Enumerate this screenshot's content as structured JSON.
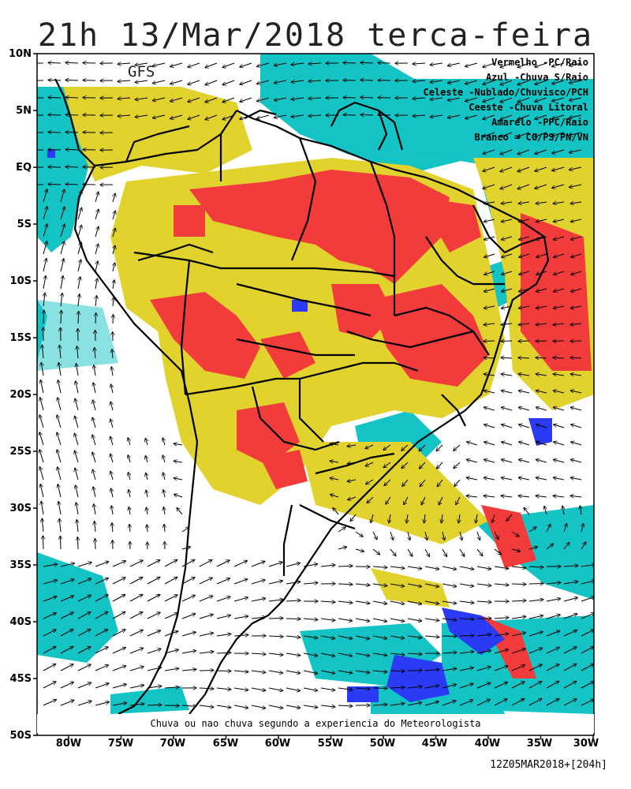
{
  "title": "21h 13/Mar/2018 terca-feira",
  "model": "GFS",
  "legend": [
    "Vermelho -PC/Raio",
    "Azul -Chuva S/Raio",
    "Celeste -Nublado/Chuvisco/PCH",
    "Ceeste -Chuva Litoral",
    "Amarelo -PPC/Raio",
    "Branco = CG/PS/PN/VN"
  ],
  "colors": {
    "red": "#f23c3c",
    "yellow": "#e2d22e",
    "cyan": "#14c3c3",
    "blue": "#2b3bf5",
    "white": "#ffffff",
    "border": "#000000",
    "wind_arrow": "#000000"
  },
  "axes": {
    "lat_labels": [
      "10N",
      "5N",
      "EQ",
      "5S",
      "10S",
      "15S",
      "20S",
      "25S",
      "30S",
      "35S",
      "40S",
      "45S",
      "50S"
    ],
    "lon_labels": [
      "80W",
      "75W",
      "70W",
      "65W",
      "60W",
      "55W",
      "50W",
      "45W",
      "40W",
      "35W",
      "30W"
    ]
  },
  "footer_note": "Chuva ou nao chuva segundo a experiencia do Meteorologista",
  "run_stamp": "12Z05MAR2018+[204h]"
}
